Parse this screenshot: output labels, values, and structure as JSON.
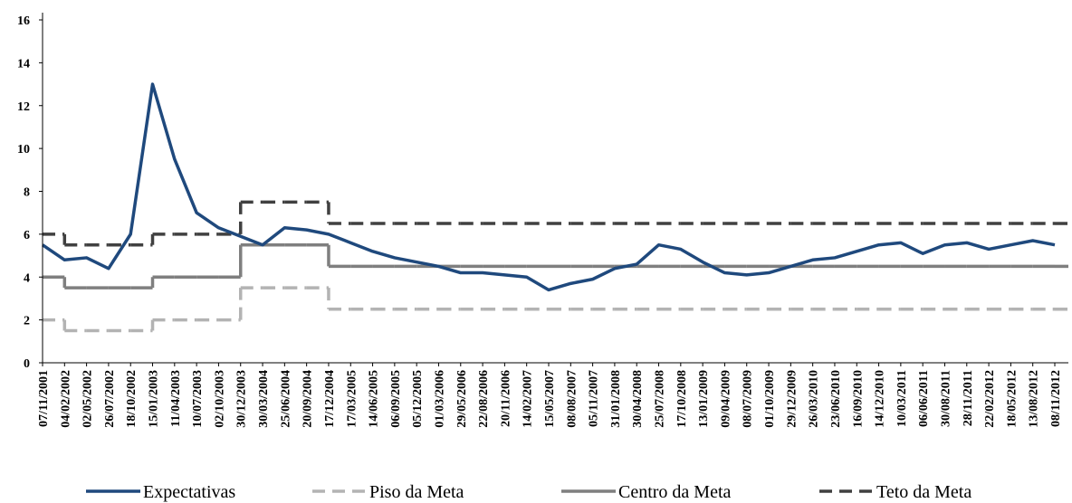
{
  "chart_data": {
    "type": "line",
    "categories": [
      "07/11/2001",
      "04/02/2002",
      "02/05/2002",
      "26/07/2002",
      "18/10/2002",
      "15/01/2003",
      "11/04/2003",
      "10/07/2003",
      "02/10/2003",
      "30/12/2003",
      "30/03/2004",
      "25/06/2004",
      "20/09/2004",
      "17/12/2004",
      "17/03/2005",
      "14/06/2005",
      "06/09/2005",
      "05/12/2005",
      "01/03/2006",
      "29/05/2006",
      "22/08/2006",
      "20/11/2006",
      "14/02/2007",
      "15/05/2007",
      "08/08/2007",
      "05/11/2007",
      "31/01/2008",
      "30/04/2008",
      "25/07/2008",
      "17/10/2008",
      "13/01/2009",
      "09/04/2009",
      "08/07/2009",
      "01/10/2009",
      "29/12/2009",
      "26/03/2010",
      "23/06/2010",
      "16/09/2010",
      "14/12/2010",
      "10/03/2011",
      "06/06/2011",
      "30/08/2011",
      "28/11/2011",
      "22/02/2012",
      "18/05/2012",
      "13/08/2012",
      "08/11/2012"
    ],
    "series": [
      {
        "name": "Expectativas",
        "color": "#1f497d",
        "dash": false,
        "step": false,
        "values": [
          5.5,
          4.8,
          4.9,
          4.4,
          6.0,
          13.0,
          9.5,
          7.0,
          6.3,
          5.9,
          5.5,
          6.3,
          6.2,
          6.0,
          5.6,
          5.2,
          4.9,
          4.7,
          4.5,
          4.2,
          4.2,
          4.1,
          4.0,
          3.4,
          3.7,
          3.9,
          4.4,
          4.6,
          5.5,
          5.3,
          4.7,
          4.2,
          4.1,
          4.2,
          4.5,
          4.8,
          4.9,
          5.2,
          5.5,
          5.6,
          5.1,
          5.5,
          5.6,
          5.3,
          5.5,
          5.7,
          5.5
        ]
      },
      {
        "name": "Piso da Meta",
        "color": "#b3b3b3",
        "dash": true,
        "step": true,
        "values": [
          2,
          1.5,
          1.5,
          1.5,
          1.5,
          2,
          2,
          2,
          2,
          3.5,
          3.5,
          3.5,
          3.5,
          2.5,
          2.5,
          2.5,
          2.5,
          2.5,
          2.5,
          2.5,
          2.5,
          2.5,
          2.5,
          2.5,
          2.5,
          2.5,
          2.5,
          2.5,
          2.5,
          2.5,
          2.5,
          2.5,
          2.5,
          2.5,
          2.5,
          2.5,
          2.5,
          2.5,
          2.5,
          2.5,
          2.5,
          2.5,
          2.5,
          2.5,
          2.5,
          2.5,
          2.5
        ]
      },
      {
        "name": "Centro da Meta",
        "color": "#7f7f7f",
        "dash": false,
        "step": true,
        "values": [
          4,
          3.5,
          3.5,
          3.5,
          3.5,
          4,
          4,
          4,
          4,
          5.5,
          5.5,
          5.5,
          5.5,
          4.5,
          4.5,
          4.5,
          4.5,
          4.5,
          4.5,
          4.5,
          4.5,
          4.5,
          4.5,
          4.5,
          4.5,
          4.5,
          4.5,
          4.5,
          4.5,
          4.5,
          4.5,
          4.5,
          4.5,
          4.5,
          4.5,
          4.5,
          4.5,
          4.5,
          4.5,
          4.5,
          4.5,
          4.5,
          4.5,
          4.5,
          4.5,
          4.5,
          4.5
        ]
      },
      {
        "name": "Teto da Meta",
        "color": "#404040",
        "dash": true,
        "step": true,
        "values": [
          6,
          5.5,
          5.5,
          5.5,
          5.5,
          6,
          6,
          6,
          6,
          7.5,
          7.5,
          7.5,
          7.5,
          6.5,
          6.5,
          6.5,
          6.5,
          6.5,
          6.5,
          6.5,
          6.5,
          6.5,
          6.5,
          6.5,
          6.5,
          6.5,
          6.5,
          6.5,
          6.5,
          6.5,
          6.5,
          6.5,
          6.5,
          6.5,
          6.5,
          6.5,
          6.5,
          6.5,
          6.5,
          6.5,
          6.5,
          6.5,
          6.5,
          6.5,
          6.5,
          6.5,
          6.5
        ]
      }
    ],
    "ylim": [
      0,
      16
    ],
    "yticks": [
      0,
      2,
      4,
      6,
      8,
      10,
      12,
      14,
      16
    ]
  }
}
